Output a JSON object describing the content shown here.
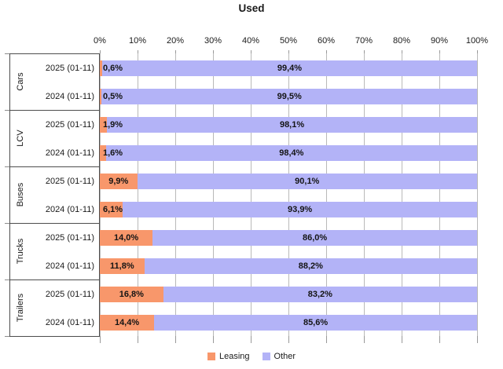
{
  "chart_data": {
    "type": "bar",
    "variant": "horizontal-stacked",
    "title": "Used",
    "x_axis": {
      "position": "top",
      "min": 0,
      "max": 100,
      "ticks": [
        "0%",
        "10%",
        "20%",
        "30%",
        "40%",
        "50%",
        "60%",
        "70%",
        "80%",
        "90%",
        "100%"
      ],
      "grid": true
    },
    "series": [
      {
        "name": "Leasing",
        "color": "#F8976B"
      },
      {
        "name": "Other",
        "color": "#B3B3F7"
      }
    ],
    "groups": [
      {
        "name": "Cars",
        "rows": [
          {
            "label": "2025 (01-11)",
            "values": [
              0.6,
              99.4
            ],
            "value_labels": [
              "0,6%",
              "99,4%"
            ]
          },
          {
            "label": "2024 (01-11)",
            "values": [
              0.5,
              99.5
            ],
            "value_labels": [
              "0,5%",
              "99,5%"
            ]
          }
        ]
      },
      {
        "name": "LCV",
        "rows": [
          {
            "label": "2025 (01-11)",
            "values": [
              1.9,
              98.1
            ],
            "value_labels": [
              "1,9%",
              "98,1%"
            ]
          },
          {
            "label": "2024 (01-11)",
            "values": [
              1.6,
              98.4
            ],
            "value_labels": [
              "1,6%",
              "98,4%"
            ]
          }
        ]
      },
      {
        "name": "Buses",
        "rows": [
          {
            "label": "2025 (01-11)",
            "values": [
              9.9,
              90.1
            ],
            "value_labels": [
              "9,9%",
              "90,1%"
            ]
          },
          {
            "label": "2024 (01-11)",
            "values": [
              6.1,
              93.9
            ],
            "value_labels": [
              "6,1%",
              "93,9%"
            ]
          }
        ]
      },
      {
        "name": "Trucks",
        "rows": [
          {
            "label": "2025 (01-11)",
            "values": [
              14.0,
              86.0
            ],
            "value_labels": [
              "14,0%",
              "86,0%"
            ]
          },
          {
            "label": "2024 (01-11)",
            "values": [
              11.8,
              88.2
            ],
            "value_labels": [
              "11,8%",
              "88,2%"
            ]
          }
        ]
      },
      {
        "name": "Trailers",
        "rows": [
          {
            "label": "2025 (01-11)",
            "values": [
              16.8,
              83.2
            ],
            "value_labels": [
              "16,8%",
              "83,2%"
            ]
          },
          {
            "label": "2024 (01-11)",
            "values": [
              14.4,
              85.6
            ],
            "value_labels": [
              "14,4%",
              "85,6%"
            ]
          }
        ]
      }
    ],
    "legend": {
      "position": "bottom",
      "items": [
        "Leasing",
        "Other"
      ]
    },
    "colors": {
      "leasing": "#F8976B",
      "other": "#B3B3F7",
      "gridline": "#B9B9B9",
      "axis_line": "#4D4D4D",
      "text": "#1A1A1A"
    }
  }
}
